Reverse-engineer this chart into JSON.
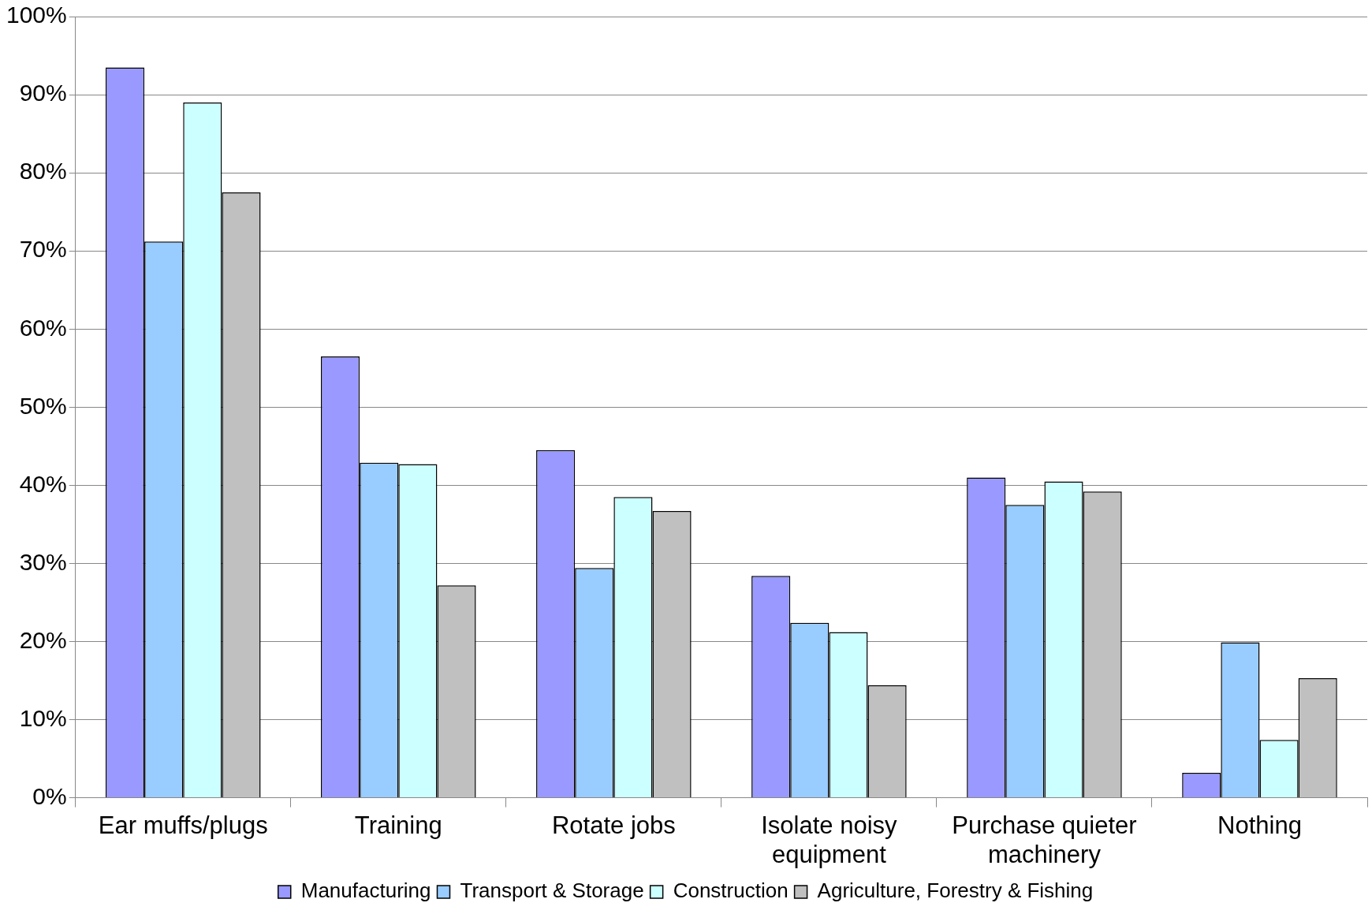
{
  "chart_data": {
    "type": "bar",
    "categories": [
      "Ear muffs/plugs",
      "Training",
      "Rotate jobs",
      "Isolate noisy equipment",
      "Purchase quieter machinery",
      "Nothing"
    ],
    "series": [
      {
        "name": "Manufacturing",
        "color": "#9999ff",
        "values": [
          93.5,
          56.5,
          44.5,
          28.4,
          41.0,
          3.2
        ]
      },
      {
        "name": "Transport & Storage",
        "color": "#99ccff",
        "values": [
          71.2,
          42.9,
          29.4,
          22.4,
          37.5,
          19.9
        ]
      },
      {
        "name": "Construction",
        "color": "#ccffff",
        "values": [
          89.0,
          42.7,
          38.5,
          21.2,
          40.5,
          7.4
        ]
      },
      {
        "name": "Agriculture, Forestry & Fishing",
        "color": "#c0c0c0",
        "values": [
          77.5,
          27.2,
          36.7,
          14.4,
          39.2,
          15.3
        ]
      }
    ],
    "ylim": [
      0,
      100
    ],
    "yticks": [
      {
        "value": 0,
        "label": "0%"
      },
      {
        "value": 10,
        "label": "10%"
      },
      {
        "value": 20,
        "label": "20%"
      },
      {
        "value": 30,
        "label": "30%"
      },
      {
        "value": 40,
        "label": "40%"
      },
      {
        "value": 50,
        "label": "50%"
      },
      {
        "value": 60,
        "label": "60%"
      },
      {
        "value": 70,
        "label": "70%"
      },
      {
        "value": 80,
        "label": "80%"
      },
      {
        "value": 90,
        "label": "90%"
      },
      {
        "value": 100,
        "label": "100%"
      }
    ],
    "grid": "y",
    "legend": "bottom"
  }
}
